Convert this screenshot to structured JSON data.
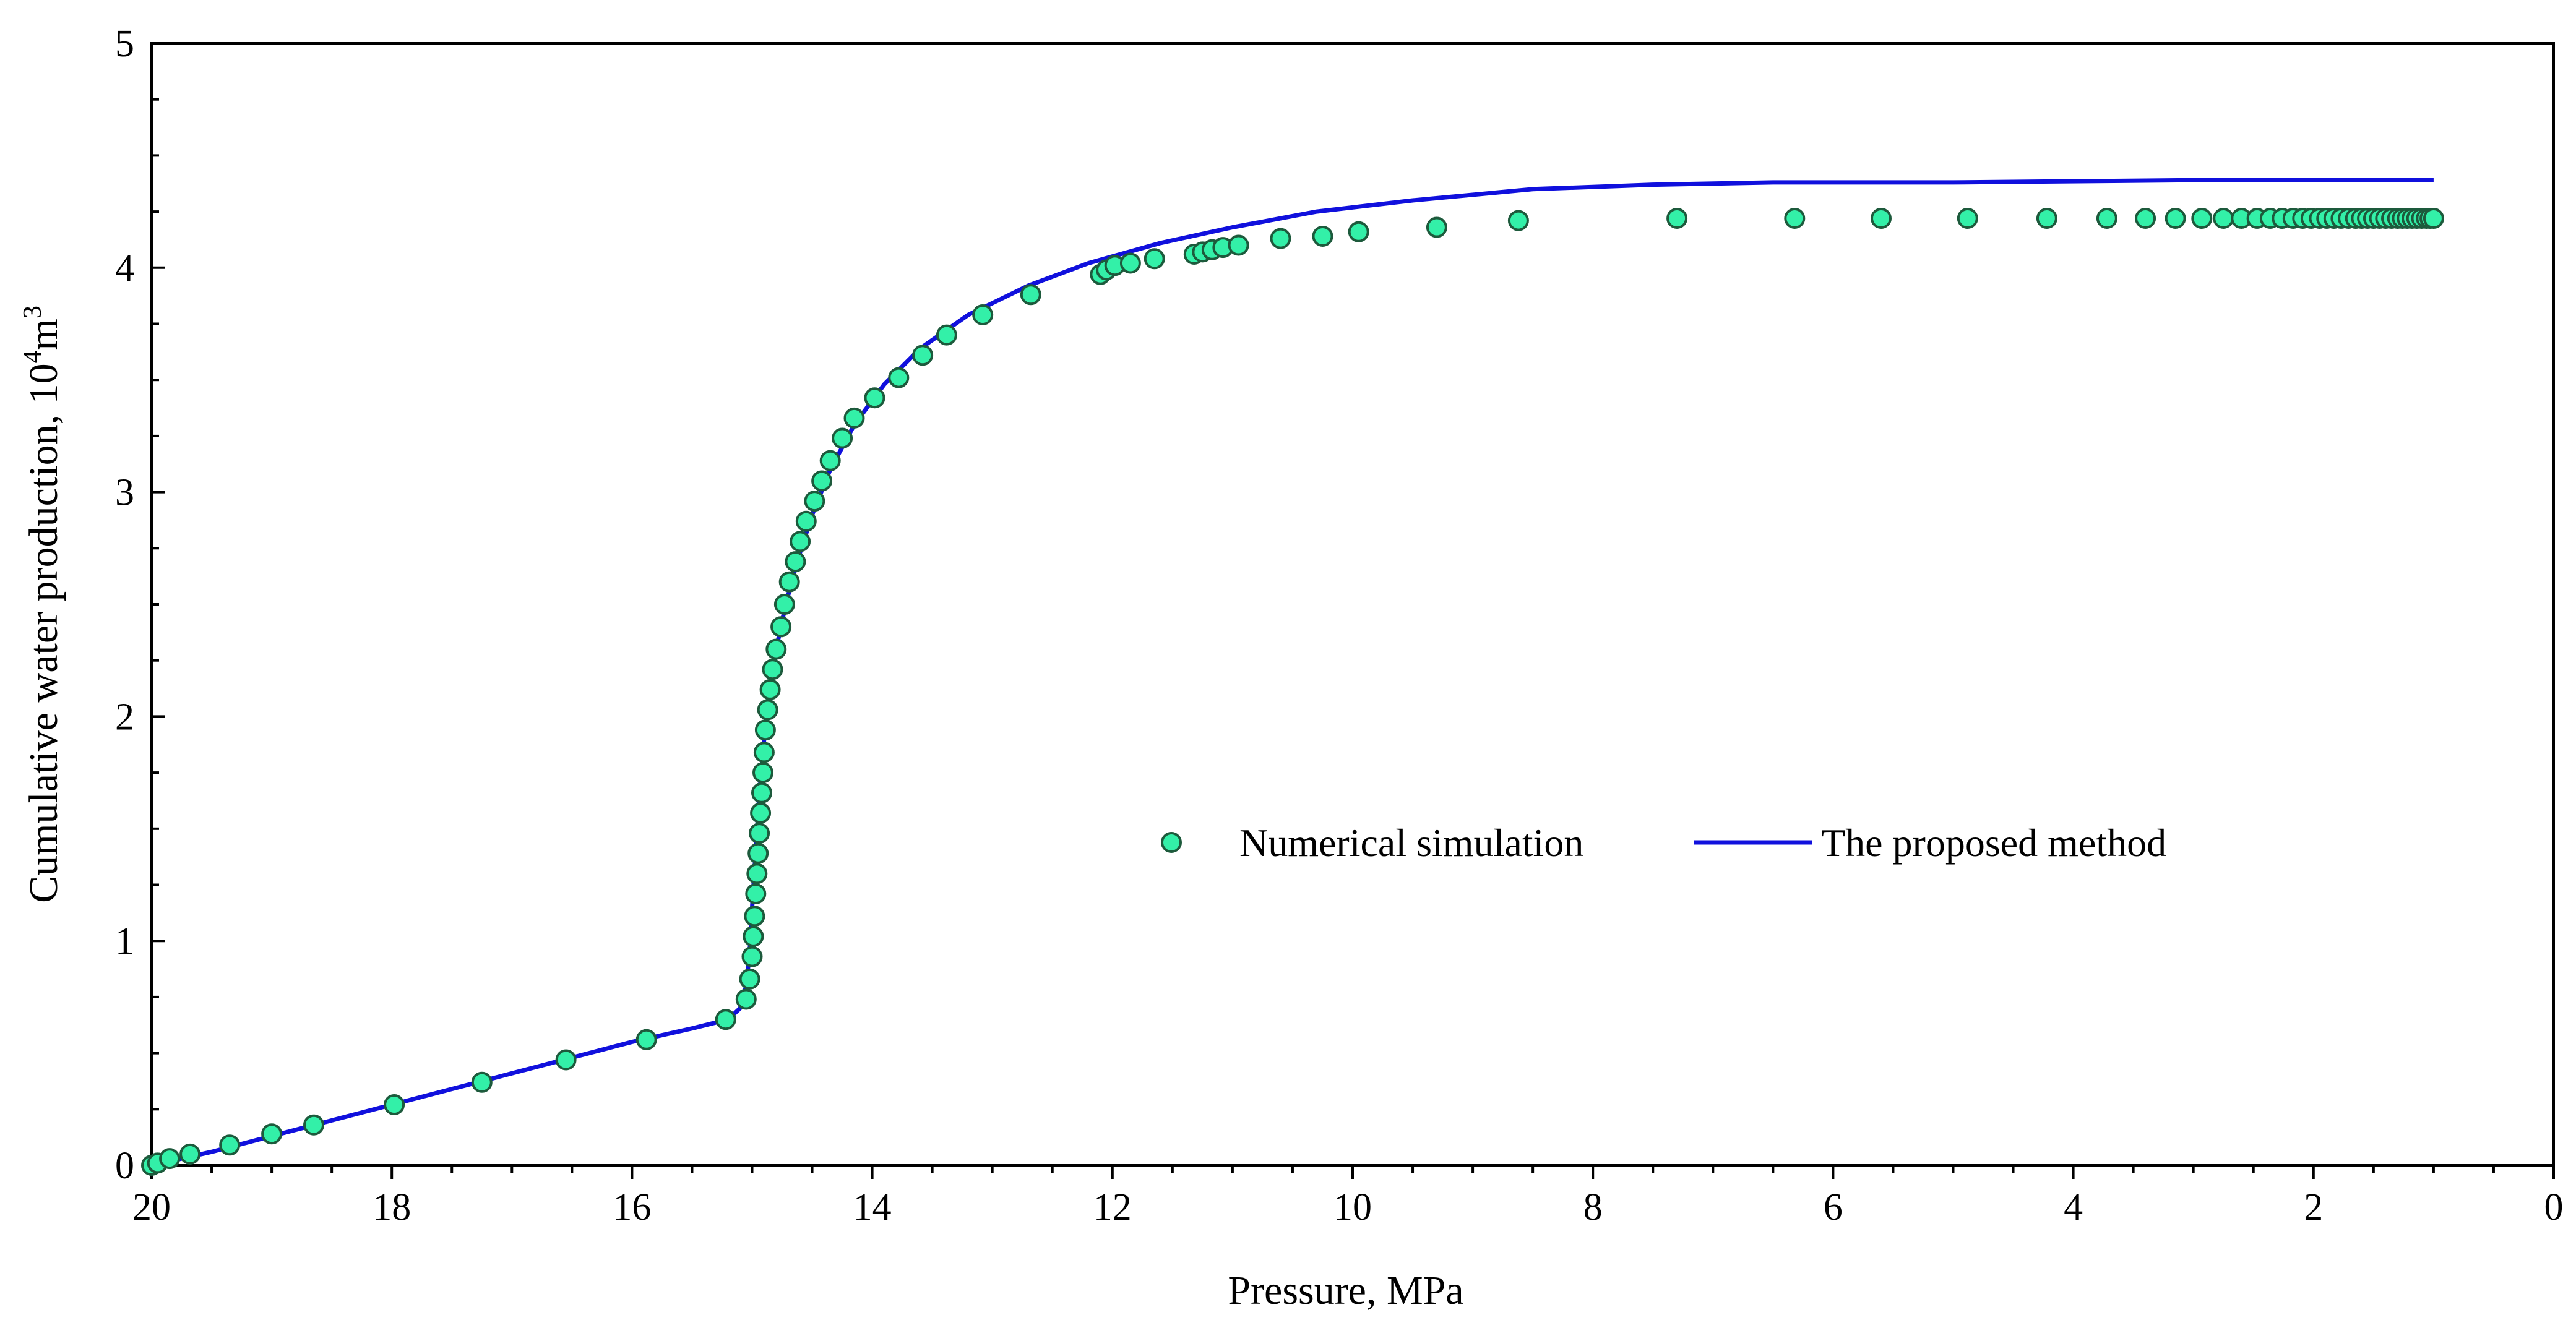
{
  "chart_data": {
    "type": "scatter+line",
    "title": "",
    "xlabel": "Pressure, MPa",
    "ylabel": {
      "text": "Cumulative  water production, 10",
      "sup1": "4",
      "mid": "m",
      "sup2": "3"
    },
    "x_reversed": true,
    "xlim": [
      20,
      0
    ],
    "ylim": [
      0,
      5
    ],
    "x_ticks": [
      20,
      18,
      16,
      14,
      12,
      10,
      8,
      6,
      4,
      2,
      0
    ],
    "y_ticks": [
      0,
      1,
      2,
      3,
      4,
      5
    ],
    "x_minor_step": 0.5,
    "y_minor_step": 0.25,
    "grid": false,
    "legend_position": "center-right",
    "colors": {
      "marker_fill": "#33f0a8",
      "marker_stroke": "#1d5a3c",
      "line": "#1010dd"
    },
    "series": [
      {
        "name": "Numerical simulation",
        "kind": "scatter",
        "points": [
          [
            20.0,
            0.0
          ],
          [
            19.95,
            0.01
          ],
          [
            19.85,
            0.03
          ],
          [
            19.68,
            0.05
          ],
          [
            19.35,
            0.09
          ],
          [
            19.0,
            0.14
          ],
          [
            18.65,
            0.18
          ],
          [
            17.98,
            0.27
          ],
          [
            17.25,
            0.37
          ],
          [
            16.55,
            0.47
          ],
          [
            15.88,
            0.56
          ],
          [
            15.22,
            0.65
          ],
          [
            15.05,
            0.74
          ],
          [
            15.02,
            0.83
          ],
          [
            15.0,
            0.93
          ],
          [
            14.99,
            1.02
          ],
          [
            14.98,
            1.11
          ],
          [
            14.97,
            1.21
          ],
          [
            14.96,
            1.3
          ],
          [
            14.95,
            1.39
          ],
          [
            14.94,
            1.48
          ],
          [
            14.93,
            1.57
          ],
          [
            14.92,
            1.66
          ],
          [
            14.91,
            1.75
          ],
          [
            14.9,
            1.84
          ],
          [
            14.89,
            1.94
          ],
          [
            14.87,
            2.03
          ],
          [
            14.85,
            2.12
          ],
          [
            14.83,
            2.21
          ],
          [
            14.8,
            2.3
          ],
          [
            14.76,
            2.4
          ],
          [
            14.73,
            2.5
          ],
          [
            14.69,
            2.6
          ],
          [
            14.64,
            2.69
          ],
          [
            14.6,
            2.78
          ],
          [
            14.55,
            2.87
          ],
          [
            14.48,
            2.96
          ],
          [
            14.42,
            3.05
          ],
          [
            14.35,
            3.14
          ],
          [
            14.25,
            3.24
          ],
          [
            14.15,
            3.33
          ],
          [
            13.98,
            3.42
          ],
          [
            13.78,
            3.51
          ],
          [
            13.58,
            3.61
          ],
          [
            13.38,
            3.7
          ],
          [
            13.08,
            3.79
          ],
          [
            12.68,
            3.88
          ],
          [
            12.1,
            3.97
          ],
          [
            12.05,
            3.99
          ],
          [
            11.98,
            4.01
          ],
          [
            11.85,
            4.02
          ],
          [
            11.65,
            4.04
          ],
          [
            11.32,
            4.06
          ],
          [
            11.25,
            4.07
          ],
          [
            11.17,
            4.08
          ],
          [
            11.08,
            4.09
          ],
          [
            10.95,
            4.1
          ],
          [
            10.6,
            4.13
          ],
          [
            10.25,
            4.14
          ],
          [
            9.95,
            4.16
          ],
          [
            9.3,
            4.18
          ],
          [
            8.62,
            4.21
          ],
          [
            7.3,
            4.22
          ],
          [
            6.32,
            4.22
          ],
          [
            5.6,
            4.22
          ],
          [
            4.88,
            4.22
          ],
          [
            4.22,
            4.22
          ],
          [
            3.72,
            4.22
          ],
          [
            3.4,
            4.22
          ],
          [
            3.15,
            4.22
          ],
          [
            2.93,
            4.22
          ],
          [
            2.75,
            4.22
          ],
          [
            2.6,
            4.22
          ],
          [
            2.47,
            4.22
          ],
          [
            2.36,
            4.22
          ],
          [
            2.26,
            4.22
          ],
          [
            2.17,
            4.22
          ],
          [
            2.09,
            4.22
          ],
          [
            2.02,
            4.22
          ],
          [
            1.95,
            4.22
          ],
          [
            1.89,
            4.22
          ],
          [
            1.83,
            4.22
          ],
          [
            1.77,
            4.22
          ],
          [
            1.71,
            4.22
          ],
          [
            1.65,
            4.22
          ],
          [
            1.6,
            4.22
          ],
          [
            1.55,
            4.22
          ],
          [
            1.5,
            4.22
          ],
          [
            1.45,
            4.22
          ],
          [
            1.4,
            4.22
          ],
          [
            1.35,
            4.22
          ],
          [
            1.3,
            4.22
          ],
          [
            1.26,
            4.22
          ],
          [
            1.22,
            4.22
          ],
          [
            1.18,
            4.22
          ],
          [
            1.14,
            4.22
          ],
          [
            1.1,
            4.22
          ],
          [
            1.06,
            4.22
          ],
          [
            1.03,
            4.22
          ],
          [
            1.0,
            4.22
          ]
        ]
      },
      {
        "name": "The proposed method",
        "kind": "line",
        "points": [
          [
            20.0,
            0.0
          ],
          [
            19.5,
            0.06
          ],
          [
            19.0,
            0.13
          ],
          [
            18.5,
            0.2
          ],
          [
            18.0,
            0.27
          ],
          [
            17.5,
            0.34
          ],
          [
            17.0,
            0.41
          ],
          [
            16.5,
            0.48
          ],
          [
            16.0,
            0.55
          ],
          [
            15.5,
            0.61
          ],
          [
            15.2,
            0.65
          ],
          [
            15.1,
            0.7
          ],
          [
            15.05,
            0.8
          ],
          [
            15.02,
            0.95
          ],
          [
            15.0,
            1.15
          ],
          [
            14.97,
            1.4
          ],
          [
            14.94,
            1.65
          ],
          [
            14.9,
            1.9
          ],
          [
            14.86,
            2.1
          ],
          [
            14.8,
            2.3
          ],
          [
            14.72,
            2.5
          ],
          [
            14.62,
            2.7
          ],
          [
            14.5,
            2.9
          ],
          [
            14.35,
            3.1
          ],
          [
            14.15,
            3.3
          ],
          [
            13.9,
            3.48
          ],
          [
            13.6,
            3.64
          ],
          [
            13.2,
            3.79
          ],
          [
            12.7,
            3.92
          ],
          [
            12.2,
            4.02
          ],
          [
            11.6,
            4.11
          ],
          [
            11.0,
            4.18
          ],
          [
            10.3,
            4.25
          ],
          [
            9.5,
            4.3
          ],
          [
            8.5,
            4.35
          ],
          [
            7.5,
            4.37
          ],
          [
            6.5,
            4.38
          ],
          [
            5.0,
            4.38
          ],
          [
            3.0,
            4.39
          ],
          [
            1.0,
            4.39
          ]
        ]
      }
    ]
  }
}
